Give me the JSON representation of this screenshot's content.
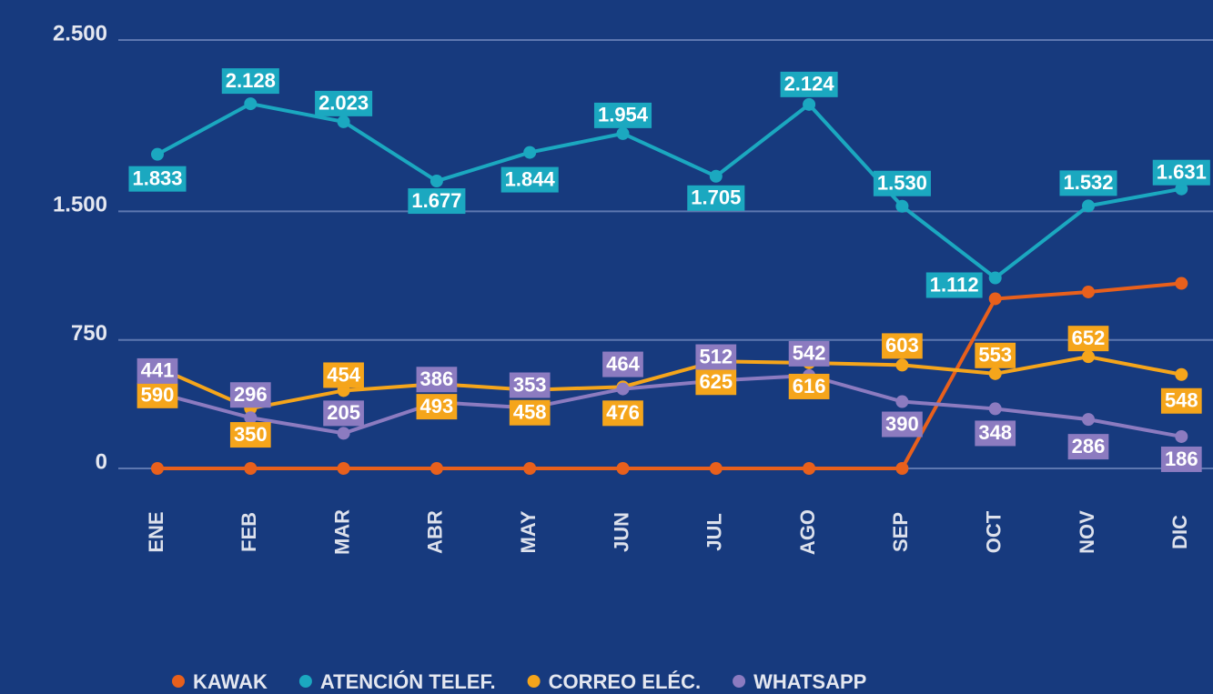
{
  "chart_data": {
    "type": "line",
    "categories": [
      "ENE",
      "FEB",
      "MAR",
      "ABR",
      "MAY",
      "JUN",
      "JUL",
      "AGO",
      "SEP",
      "OCT",
      "NOV",
      "DIC"
    ],
    "series": [
      {
        "name": "KAWAK",
        "color": "#e8601c",
        "values": [
          0,
          0,
          0,
          0,
          0,
          0,
          0,
          0,
          0,
          990,
          1030,
          1080
        ]
      },
      {
        "name": "ATENCIÓN TELEF.",
        "color": "#1ba8c0",
        "values": [
          1833,
          2128,
          2023,
          1677,
          1844,
          1954,
          1705,
          2124,
          1530,
          1112,
          1532,
          1631
        ],
        "value_labels": [
          "1.833",
          "2.128",
          "2.023",
          "1.677",
          "1.844",
          "1.954",
          "1.705",
          "2.124",
          "1.530",
          "1.112",
          "1.532",
          "1.631"
        ]
      },
      {
        "name": "CORREO ELÉC.",
        "color": "#f5a51b",
        "values": [
          590,
          350,
          454,
          493,
          458,
          476,
          625,
          616,
          603,
          553,
          652,
          548
        ]
      },
      {
        "name": "WHATSAPP",
        "color": "#8c7bc0",
        "values": [
          441,
          296,
          205,
          386,
          353,
          464,
          512,
          542,
          390,
          348,
          286,
          186
        ]
      }
    ],
    "ylim": [
      0,
      2500
    ],
    "yticks": [
      0,
      750,
      {
        "value": 1500,
        "label": "1.500"
      },
      {
        "value": 2500,
        "label": "2.500"
      }
    ],
    "grid": true
  }
}
